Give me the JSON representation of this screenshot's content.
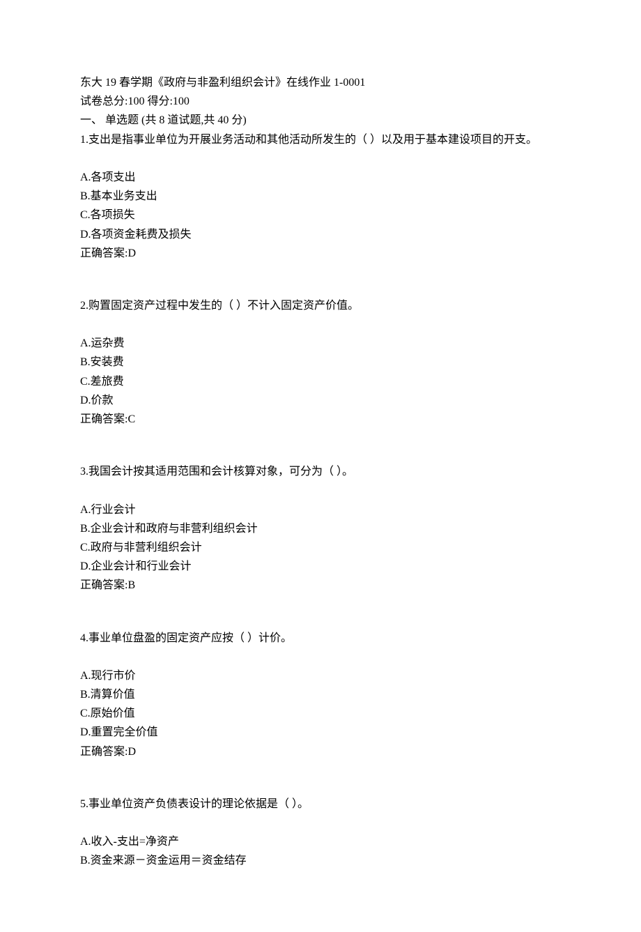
{
  "header": {
    "title": "东大 19 春学期《政府与非盈利组织会计》在线作业 1-0001",
    "score_line": "试卷总分:100       得分:100",
    "section_title": "一、  单选题  (共  8  道试题,共  40  分)"
  },
  "questions": [
    {
      "stem": "1.支出是指事业单位为开展业务活动和其他活动所发生的（          ）以及用于基本建设项目的开支。",
      "options": [
        "A.各项支出",
        "B.基本业务支出",
        "C.各项损失",
        "D.各项资金耗费及损失"
      ],
      "answer": "正确答案:D"
    },
    {
      "stem": "2.购置固定资产过程中发生的（     ）不计入固定资产价值。",
      "options": [
        "A.运杂费",
        "B.安装费",
        "C.差旅费",
        "D.价款"
      ],
      "answer": "正确答案:C"
    },
    {
      "stem": "3.我国会计按其适用范围和会计核算对象，可分为（        ）。",
      "options": [
        "A.行业会计",
        "B.企业会计和政府与非营利组织会计",
        "C.政府与非营利组织会计",
        "D.企业会计和行业会计"
      ],
      "answer": "正确答案:B"
    },
    {
      "stem": "4.事业单位盘盈的固定资产应按（       ）计价。",
      "options": [
        "A.现行市价",
        "B.清算价值",
        "C.原始价值",
        "D.重置完全价值"
      ],
      "answer": "正确答案:D"
    },
    {
      "stem": "5.事业单位资产负债表设计的理论依据是（          ）。",
      "options": [
        "A.收入-支出=净资产",
        "B.资金来源－资金运用＝资金结存"
      ],
      "answer": ""
    }
  ]
}
